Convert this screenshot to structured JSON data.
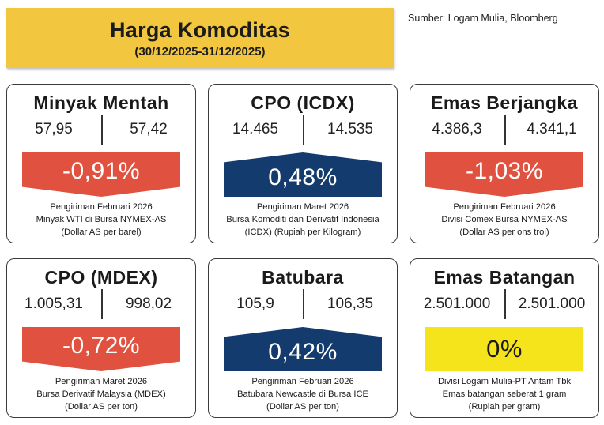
{
  "header": {
    "title": "Harga Komoditas",
    "date": "(30/12/2025-31/12/2025)"
  },
  "source": "Sumber: Logam Mulia, Bloomberg",
  "colors": {
    "header_bg": "#f3c63f",
    "down": "#e0523f",
    "up": "#133b6e",
    "flat": "#f5e31c"
  },
  "cards": [
    {
      "name": "Minyak Mentah",
      "prev": "57,95",
      "curr": "57,42",
      "change": "-0,91%",
      "direction": "down",
      "info": [
        "Pengiriman Februari 2026",
        "Minyak WTI di Bursa NYMEX-AS",
        "(Dollar AS per barel)"
      ]
    },
    {
      "name": "CPO (ICDX)",
      "prev": "14.465",
      "curr": "14.535",
      "change": "0,48%",
      "direction": "up",
      "info": [
        "Pengiriman Maret 2026",
        "Bursa Komoditi dan Derivatif Indonesia",
        "(ICDX) (Rupiah per Kilogram)"
      ]
    },
    {
      "name": "Emas Berjangka",
      "prev": "4.386,3",
      "curr": "4.341,1",
      "change": "-1,03%",
      "direction": "down",
      "info": [
        "Pengiriman Februari 2026",
        "Divisi Comex Bursa NYMEX-AS",
        "(Dollar AS per ons troi)"
      ]
    },
    {
      "name": "CPO (MDEX)",
      "prev": "1.005,31",
      "curr": "998,02",
      "change": "-0,72%",
      "direction": "down",
      "info": [
        "Pengiriman Maret 2026",
        "Bursa Derivatif Malaysia (MDEX)",
        "(Dollar AS per ton)"
      ]
    },
    {
      "name": "Batubara",
      "prev": "105,9",
      "curr": "106,35",
      "change": "0,42%",
      "direction": "up",
      "info": [
        "Pengiriman Februari 2026",
        "Batubara Newcastle di Bursa ICE",
        "(Dollar AS per ton)"
      ]
    },
    {
      "name": "Emas Batangan",
      "prev": "2.501.000",
      "curr": "2.501.000",
      "change": "0%",
      "direction": "flat",
      "info": [
        "Divisi Logam Mulia-PT Antam Tbk",
        "Emas batangan seberat 1 gram",
        "(Rupiah per gram)"
      ]
    }
  ]
}
